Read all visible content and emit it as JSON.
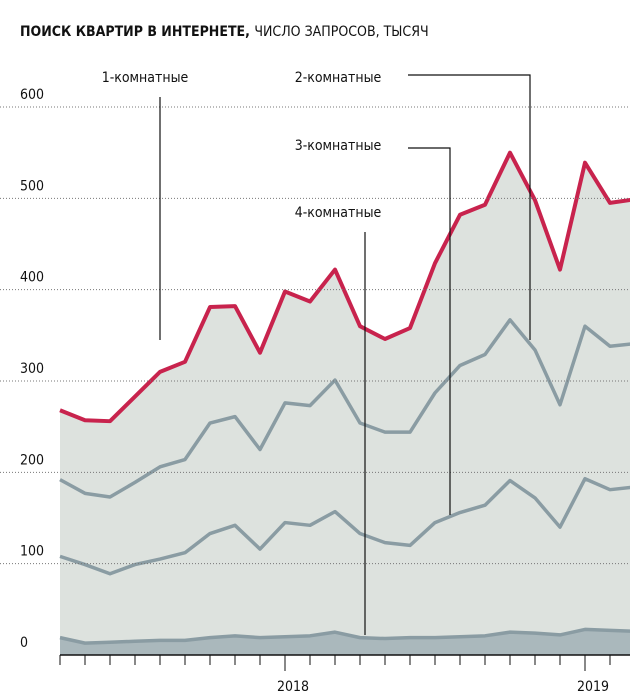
{
  "chart_data": {
    "type": "line",
    "title": "ПОИСК КВАРТИР В ИНТЕРНЕТЕ,",
    "subtitle": "ЧИСЛО ЗАПРОСОВ, ТЫСЯЧ",
    "categories": [
      null,
      null,
      null,
      null,
      null,
      null,
      null,
      null,
      null,
      "2018",
      null,
      null,
      null,
      null,
      null,
      null,
      null,
      null,
      null,
      null,
      null,
      "2019",
      null,
      null
    ],
    "series": [
      {
        "name": "1-комнатные",
        "color": "#c8234d",
        "values": [
          268,
          257,
          256,
          283,
          310,
          321,
          381,
          382,
          331,
          398,
          387,
          422,
          360,
          346,
          358,
          429,
          482,
          493,
          550,
          498,
          422,
          539,
          495,
          499
        ]
      },
      {
        "name": "2-комнатные",
        "color": "#8a9ca3",
        "values": [
          192,
          177,
          173,
          189,
          206,
          214,
          254,
          261,
          225,
          276,
          273,
          301,
          254,
          244,
          244,
          287,
          317,
          329,
          367,
          334,
          274,
          360,
          338,
          341
        ]
      },
      {
        "name": "3-комнатные",
        "color": "#8a9ca3",
        "values": [
          108,
          99,
          89,
          99,
          105,
          112,
          133,
          142,
          116,
          145,
          142,
          157,
          133,
          123,
          120,
          145,
          156,
          164,
          191,
          172,
          140,
          193,
          181,
          184
        ]
      },
      {
        "name": "4-комнатные",
        "color": "#8a9ca3",
        "values": [
          19,
          13,
          14,
          15,
          16,
          16,
          19,
          21,
          19,
          20,
          21,
          25,
          19,
          18,
          19,
          19,
          20,
          21,
          25,
          24,
          22,
          28,
          27,
          26
        ]
      }
    ],
    "ylim": [
      0,
      600
    ],
    "yticks": [
      0,
      100,
      200,
      300,
      400,
      500,
      600
    ],
    "grid": true
  }
}
